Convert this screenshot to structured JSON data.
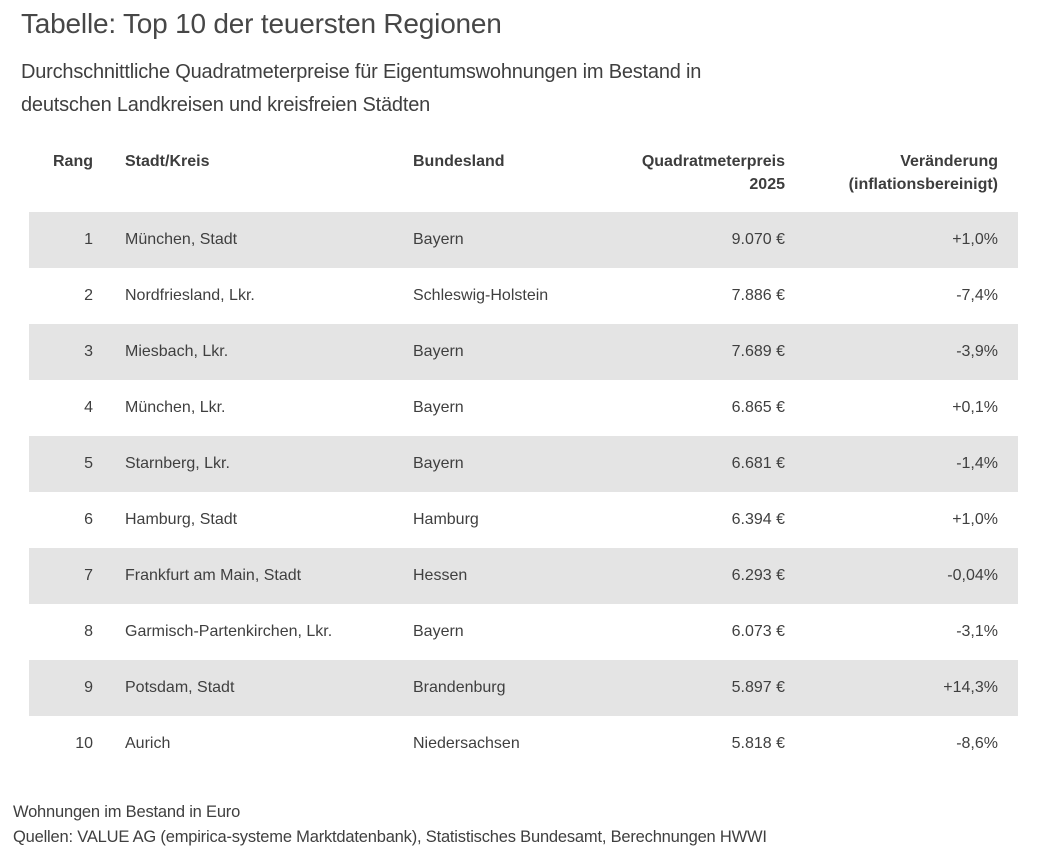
{
  "header": {
    "title": "Tabelle: Top 10 der teuersten Regionen",
    "subtitle_line1": "Durchschnittliche Quadratmeterpreise für Eigentumswohnungen im Bestand in",
    "subtitle_line2": "deutschen Landkreisen und kreisfreien Städten"
  },
  "table": {
    "headers": {
      "rank": "Rang",
      "region": "Stadt/Kreis",
      "state": "Bundesland",
      "price_line1": "Quadratmeterpreis",
      "price_line2": "2025",
      "change_line1": "Veränderung",
      "change_line2": "(inflationsbereinigt)"
    },
    "rows": [
      {
        "rank": "1",
        "region": "München, Stadt",
        "state": "Bayern",
        "price": "9.070 €",
        "change": "+1,0%"
      },
      {
        "rank": "2",
        "region": "Nordfriesland, Lkr.",
        "state": "Schleswig-Holstein",
        "price": "7.886 €",
        "change": "-7,4%"
      },
      {
        "rank": "3",
        "region": "Miesbach, Lkr.",
        "state": "Bayern",
        "price": "7.689 €",
        "change": "-3,9%"
      },
      {
        "rank": "4",
        "region": "München, Lkr.",
        "state": "Bayern",
        "price": "6.865 €",
        "change": "+0,1%"
      },
      {
        "rank": "5",
        "region": "Starnberg, Lkr.",
        "state": "Bayern",
        "price": "6.681 €",
        "change": "-1,4%"
      },
      {
        "rank": "6",
        "region": "Hamburg, Stadt",
        "state": "Hamburg",
        "price": "6.394 €",
        "change": "+1,0%"
      },
      {
        "rank": "7",
        "region": "Frankfurt am Main, Stadt",
        "state": "Hessen",
        "price": "6.293 €",
        "change": "-0,04%"
      },
      {
        "rank": "8",
        "region": "Garmisch-Partenkirchen, Lkr.",
        "state": "Bayern",
        "price": "6.073 €",
        "change": "-3,1%"
      },
      {
        "rank": "9",
        "region": "Potsdam, Stadt",
        "state": "Brandenburg",
        "price": "5.897 €",
        "change": "+14,3%"
      },
      {
        "rank": "10",
        "region": "Aurich",
        "state": "Niedersachsen",
        "price": "5.818 €",
        "change": "-8,6%"
      }
    ]
  },
  "footer": {
    "note": "Wohnungen im Bestand in Euro",
    "sources": "Quellen: VALUE AG (empirica-systeme Marktdatenbank), Statistisches Bundesamt, Berechnungen HWWI"
  },
  "colors": {
    "stripe": "#e4e4e4",
    "text": "#3f3f3f",
    "background": "#ffffff"
  },
  "chart_data": {
    "type": "table",
    "title": "Tabelle: Top 10 der teuersten Regionen",
    "subtitle": "Durchschnittliche Quadratmeterpreise für Eigentumswohnungen im Bestand in deutschen Landkreisen und kreisfreien Städten",
    "columns": [
      "Rang",
      "Stadt/Kreis",
      "Bundesland",
      "Quadratmeterpreis 2025",
      "Veränderung (inflationsbereinigt)"
    ],
    "rows": [
      [
        1,
        "München, Stadt",
        "Bayern",
        "9.070 €",
        "+1,0%"
      ],
      [
        2,
        "Nordfriesland, Lkr.",
        "Schleswig-Holstein",
        "7.886 €",
        "-7,4%"
      ],
      [
        3,
        "Miesbach, Lkr.",
        "Bayern",
        "7.689 €",
        "-3,9%"
      ],
      [
        4,
        "München, Lkr.",
        "Bayern",
        "6.865 €",
        "+0,1%"
      ],
      [
        5,
        "Starnberg, Lkr.",
        "Bayern",
        "6.681 €",
        "-1,4%"
      ],
      [
        6,
        "Hamburg, Stadt",
        "Hamburg",
        "6.394 €",
        "+1,0%"
      ],
      [
        7,
        "Frankfurt am Main, Stadt",
        "Hessen",
        "6.293 €",
        "-0,04%"
      ],
      [
        8,
        "Garmisch-Partenkirchen, Lkr.",
        "Bayern",
        "6.073 €",
        "-3,1%"
      ],
      [
        9,
        "Potsdam, Stadt",
        "Brandenburg",
        "5.897 €",
        "+14,3%"
      ],
      [
        10,
        "Aurich",
        "Niedersachsen",
        "5.818 €",
        "-8,6%"
      ]
    ],
    "price_values_eur_per_sqm": [
      9070,
      7886,
      7689,
      6865,
      6681,
      6394,
      6293,
      6073,
      5897,
      5818
    ],
    "change_percent_values": [
      1.0,
      -7.4,
      -3.9,
      0.1,
      -1.4,
      1.0,
      -0.04,
      -3.1,
      14.3,
      -8.6
    ],
    "layout_hints": {
      "striped_rows": "odd rows shaded",
      "stripe_color": "#e4e4e4",
      "alignment": [
        "right",
        "left",
        "left",
        "right",
        "right"
      ]
    },
    "notes": [
      "Wohnungen im Bestand in Euro",
      "Quellen: VALUE AG (empirica-systeme Marktdatenbank), Statistisches Bundesamt, Berechnungen HWWI"
    ]
  }
}
